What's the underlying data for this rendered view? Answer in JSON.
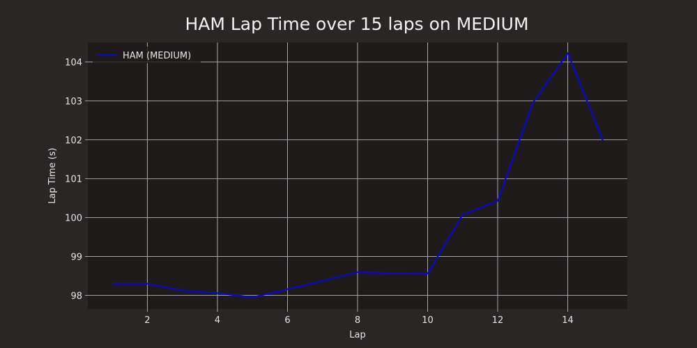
{
  "chart_data": {
    "type": "line",
    "title": "HAM Lap Time over 15 laps on MEDIUM",
    "xlabel": "Lap",
    "ylabel": "Lap Time (s)",
    "xlim": [
      0.3,
      15.7
    ],
    "ylim": [
      97.65,
      104.5
    ],
    "xticks": [
      2,
      4,
      6,
      8,
      10,
      12,
      14
    ],
    "yticks": [
      98,
      99,
      100,
      101,
      102,
      103,
      104
    ],
    "grid": true,
    "legend_position": "top-left",
    "series": [
      {
        "name": "HAM (MEDIUM)",
        "color": "#0a0acc",
        "x": [
          1,
          2,
          3,
          4,
          5,
          6,
          7,
          8,
          9,
          10,
          11,
          12,
          13,
          14,
          15
        ],
        "y": [
          98.3,
          98.3,
          98.13,
          98.06,
          97.95,
          98.16,
          98.38,
          98.6,
          98.57,
          98.56,
          100.08,
          100.43,
          102.95,
          104.23,
          101.98
        ]
      }
    ]
  },
  "colors": {
    "figure_bg": "#292625",
    "plot_bg": "#1e1b1a",
    "grid": "#a8a8a8",
    "text": "#e6e6e6"
  }
}
